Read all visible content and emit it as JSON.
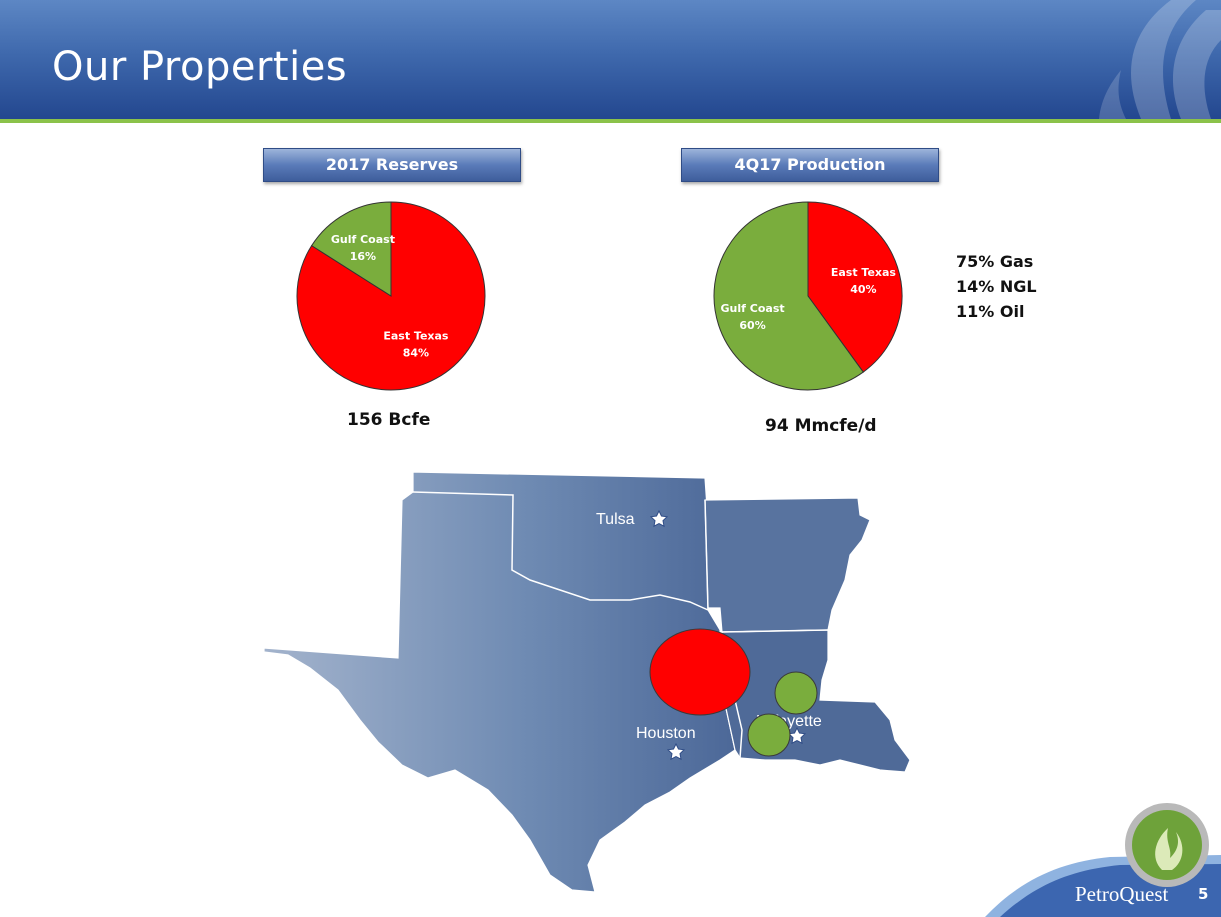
{
  "slide": {
    "title": "Our Properties",
    "page_number": "5",
    "brand": "PetroQuest"
  },
  "colors": {
    "east_texas": "#ff0000",
    "gulf_coast": "#7aad3d",
    "header_blue": "#2f55a0",
    "map_blue": "#6b86b0"
  },
  "reserves": {
    "header": "2017 Reserves",
    "total": "156 Bcfe"
  },
  "production": {
    "header": "4Q17 Production",
    "total": "94 Mmcfe/d",
    "mix": [
      "75% Gas",
      "14% NGL",
      "11% Oil"
    ]
  },
  "chart_data": [
    {
      "type": "pie",
      "title": "2017 Reserves",
      "slices": [
        {
          "label": "East Texas",
          "value": 84,
          "pct_label": "84%",
          "color": "#ff0000"
        },
        {
          "label": "Gulf Coast",
          "value": 16,
          "pct_label": "16%",
          "color": "#7aad3d"
        }
      ]
    },
    {
      "type": "pie",
      "title": "4Q17 Production",
      "slices": [
        {
          "label": "East Texas",
          "value": 40,
          "pct_label": "40%",
          "color": "#ff0000"
        },
        {
          "label": "Gulf Coast",
          "value": 60,
          "pct_label": "60%",
          "color": "#7aad3d"
        }
      ]
    }
  ],
  "map": {
    "cities": [
      {
        "name": "Tulsa",
        "icon": "star-icon"
      },
      {
        "name": "Houston",
        "icon": "star-icon"
      },
      {
        "name": "Lafayette",
        "icon": "star-icon"
      }
    ],
    "markers": [
      {
        "region": "East Texas",
        "color": "#ff0000"
      },
      {
        "region": "Gulf Coast",
        "color": "#7aad3d"
      },
      {
        "region": "Gulf Coast",
        "color": "#7aad3d"
      }
    ]
  }
}
